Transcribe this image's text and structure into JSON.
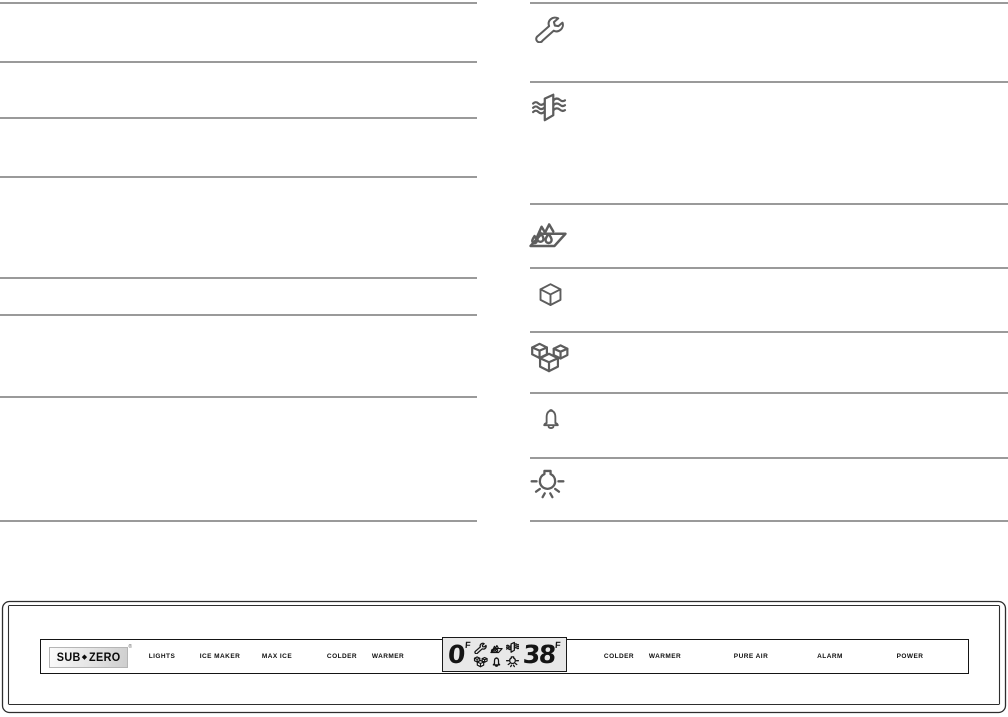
{
  "colors": {
    "divider": "#9a9a9a",
    "icon_stroke": "#5d5d5d",
    "panel_stroke": "#2e2e2e",
    "lcd_background": "#e8e8e8",
    "lcd_ink": "#141414",
    "label_ink": "#0f0f0f"
  },
  "guide_table": {
    "right_rows": [
      {
        "icon": "wrench-icon"
      },
      {
        "icon": "pure-air-icon"
      },
      {
        "icon": "water-drops-icon"
      },
      {
        "icon": "ice-cube-icon"
      },
      {
        "icon": "ice-cubes-icon"
      },
      {
        "icon": "alarm-bell-icon"
      },
      {
        "icon": "light-bulb-icon"
      }
    ]
  },
  "control_panel": {
    "brand": {
      "sub": "SUB",
      "separator": "◆",
      "zero": "ZERO",
      "mark": "®"
    },
    "left_buttons": [
      "LIGHTS",
      "ICE MAKER",
      "MAX ICE",
      "COLDER",
      "WARMER"
    ],
    "right_buttons": [
      "COLDER",
      "WARMER",
      "PURE AIR",
      "ALARM",
      "POWER"
    ],
    "display": {
      "freezer_value": "0",
      "freezer_unit": "F",
      "fridge_value": "38",
      "fridge_unit": "F",
      "icons": [
        "wrench-icon",
        "water-drops-icon",
        "pure-air-icon",
        "ice-cubes-icon",
        "alarm-bell-icon",
        "light-bulb-icon"
      ]
    }
  }
}
